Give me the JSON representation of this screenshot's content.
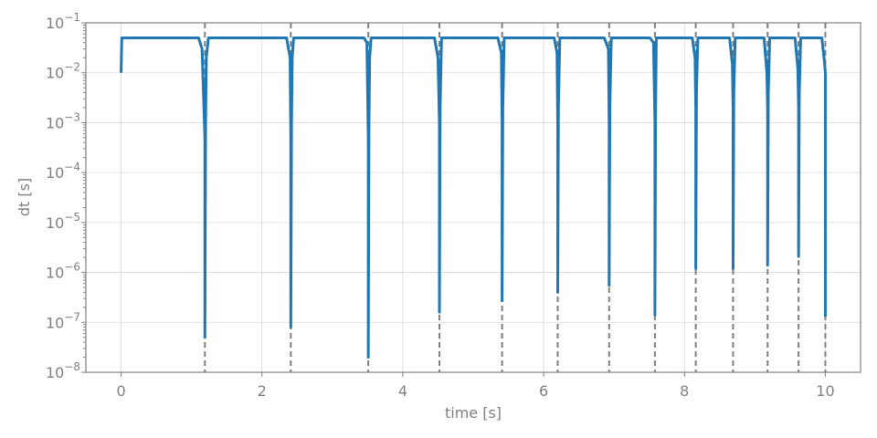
{
  "chart_data": {
    "type": "line",
    "xlabel": "time [s]",
    "ylabel": "dt [s]",
    "xlim": [
      -0.5,
      10.5
    ],
    "ylim": [
      1e-08,
      0.1
    ],
    "yscale": "log",
    "grid": true,
    "x_ticks": [
      {
        "value": 0,
        "label": "0"
      },
      {
        "value": 2,
        "label": "2"
      },
      {
        "value": 4,
        "label": "4"
      },
      {
        "value": 6,
        "label": "6"
      },
      {
        "value": 8,
        "label": "8"
      },
      {
        "value": 10,
        "label": "10"
      }
    ],
    "y_ticks": [
      {
        "value": -8,
        "base": "10",
        "exp": "−8"
      },
      {
        "value": -7,
        "base": "10",
        "exp": "−7"
      },
      {
        "value": -6,
        "base": "10",
        "exp": "−6"
      },
      {
        "value": -5,
        "base": "10",
        "exp": "−5"
      },
      {
        "value": -4,
        "base": "10",
        "exp": "−4"
      },
      {
        "value": -3,
        "base": "10",
        "exp": "−3"
      },
      {
        "value": -2,
        "base": "10",
        "exp": "−2"
      },
      {
        "value": -1,
        "base": "10",
        "exp": "−1"
      }
    ],
    "event_times": [
      1.19,
      2.41,
      3.51,
      4.52,
      5.41,
      6.2,
      6.93,
      7.58,
      8.16,
      8.69,
      9.18,
      9.62,
      10.0
    ],
    "series": [
      {
        "color": "#1f77b4",
        "points": [
          [
            0.0,
            0.01
          ],
          [
            0.01,
            0.05
          ],
          [
            1.1,
            0.05
          ],
          [
            1.15,
            0.03
          ],
          [
            1.19,
            0.0005
          ],
          [
            1.19,
            5e-08
          ],
          [
            1.2,
            0.001
          ],
          [
            1.21,
            0.02
          ],
          [
            1.24,
            0.05
          ],
          [
            2.35,
            0.05
          ],
          [
            2.4,
            0.02
          ],
          [
            2.41,
            0.0005
          ],
          [
            2.41,
            8e-08
          ],
          [
            2.42,
            0.001
          ],
          [
            2.43,
            0.02
          ],
          [
            2.45,
            0.05
          ],
          [
            3.45,
            0.05
          ],
          [
            3.49,
            0.04
          ],
          [
            3.51,
            0.0005
          ],
          [
            3.51,
            2e-08
          ],
          [
            3.52,
            0.001
          ],
          [
            3.53,
            0.02
          ],
          [
            3.55,
            0.05
          ],
          [
            4.45,
            0.05
          ],
          [
            4.5,
            0.02
          ],
          [
            4.52,
            0.001
          ],
          [
            4.52,
            1.6e-07
          ],
          [
            4.53,
            0.002
          ],
          [
            4.55,
            0.05
          ],
          [
            5.35,
            0.05
          ],
          [
            5.4,
            0.025
          ],
          [
            5.41,
            0.001
          ],
          [
            5.41,
            2.7e-07
          ],
          [
            5.42,
            0.002
          ],
          [
            5.44,
            0.05
          ],
          [
            6.15,
            0.05
          ],
          [
            6.19,
            0.025
          ],
          [
            6.2,
            0.001
          ],
          [
            6.2,
            4e-07
          ],
          [
            6.21,
            0.002
          ],
          [
            6.23,
            0.05
          ],
          [
            6.86,
            0.05
          ],
          [
            6.92,
            0.03
          ],
          [
            6.93,
            0.001
          ],
          [
            6.93,
            5.5e-07
          ],
          [
            6.94,
            0.002
          ],
          [
            6.96,
            0.05
          ],
          [
            7.51,
            0.05
          ],
          [
            7.56,
            0.04
          ],
          [
            7.58,
            0.001
          ],
          [
            7.58,
            1.4e-07
          ],
          [
            7.59,
            0.002
          ],
          [
            7.6,
            0.05
          ],
          [
            8.11,
            0.05
          ],
          [
            8.15,
            0.02
          ],
          [
            8.16,
            0.002
          ],
          [
            8.16,
            1.2e-06
          ],
          [
            8.17,
            0.004
          ],
          [
            8.19,
            0.05
          ],
          [
            8.64,
            0.05
          ],
          [
            8.68,
            0.015
          ],
          [
            8.69,
            0.002
          ],
          [
            8.69,
            1.2e-06
          ],
          [
            8.7,
            0.004
          ],
          [
            8.72,
            0.05
          ],
          [
            9.13,
            0.05
          ],
          [
            9.17,
            0.01
          ],
          [
            9.18,
            0.002
          ],
          [
            9.18,
            1.4e-06
          ],
          [
            9.19,
            0.004
          ],
          [
            9.21,
            0.05
          ],
          [
            9.57,
            0.05
          ],
          [
            9.61,
            0.012
          ],
          [
            9.62,
            0.002
          ],
          [
            9.62,
            2.1e-06
          ],
          [
            9.63,
            0.004
          ],
          [
            9.65,
            0.05
          ],
          [
            9.95,
            0.05
          ],
          [
            9.99,
            0.015
          ],
          [
            10.0,
            0.01
          ],
          [
            10.0,
            1.3e-07
          ]
        ]
      }
    ]
  }
}
